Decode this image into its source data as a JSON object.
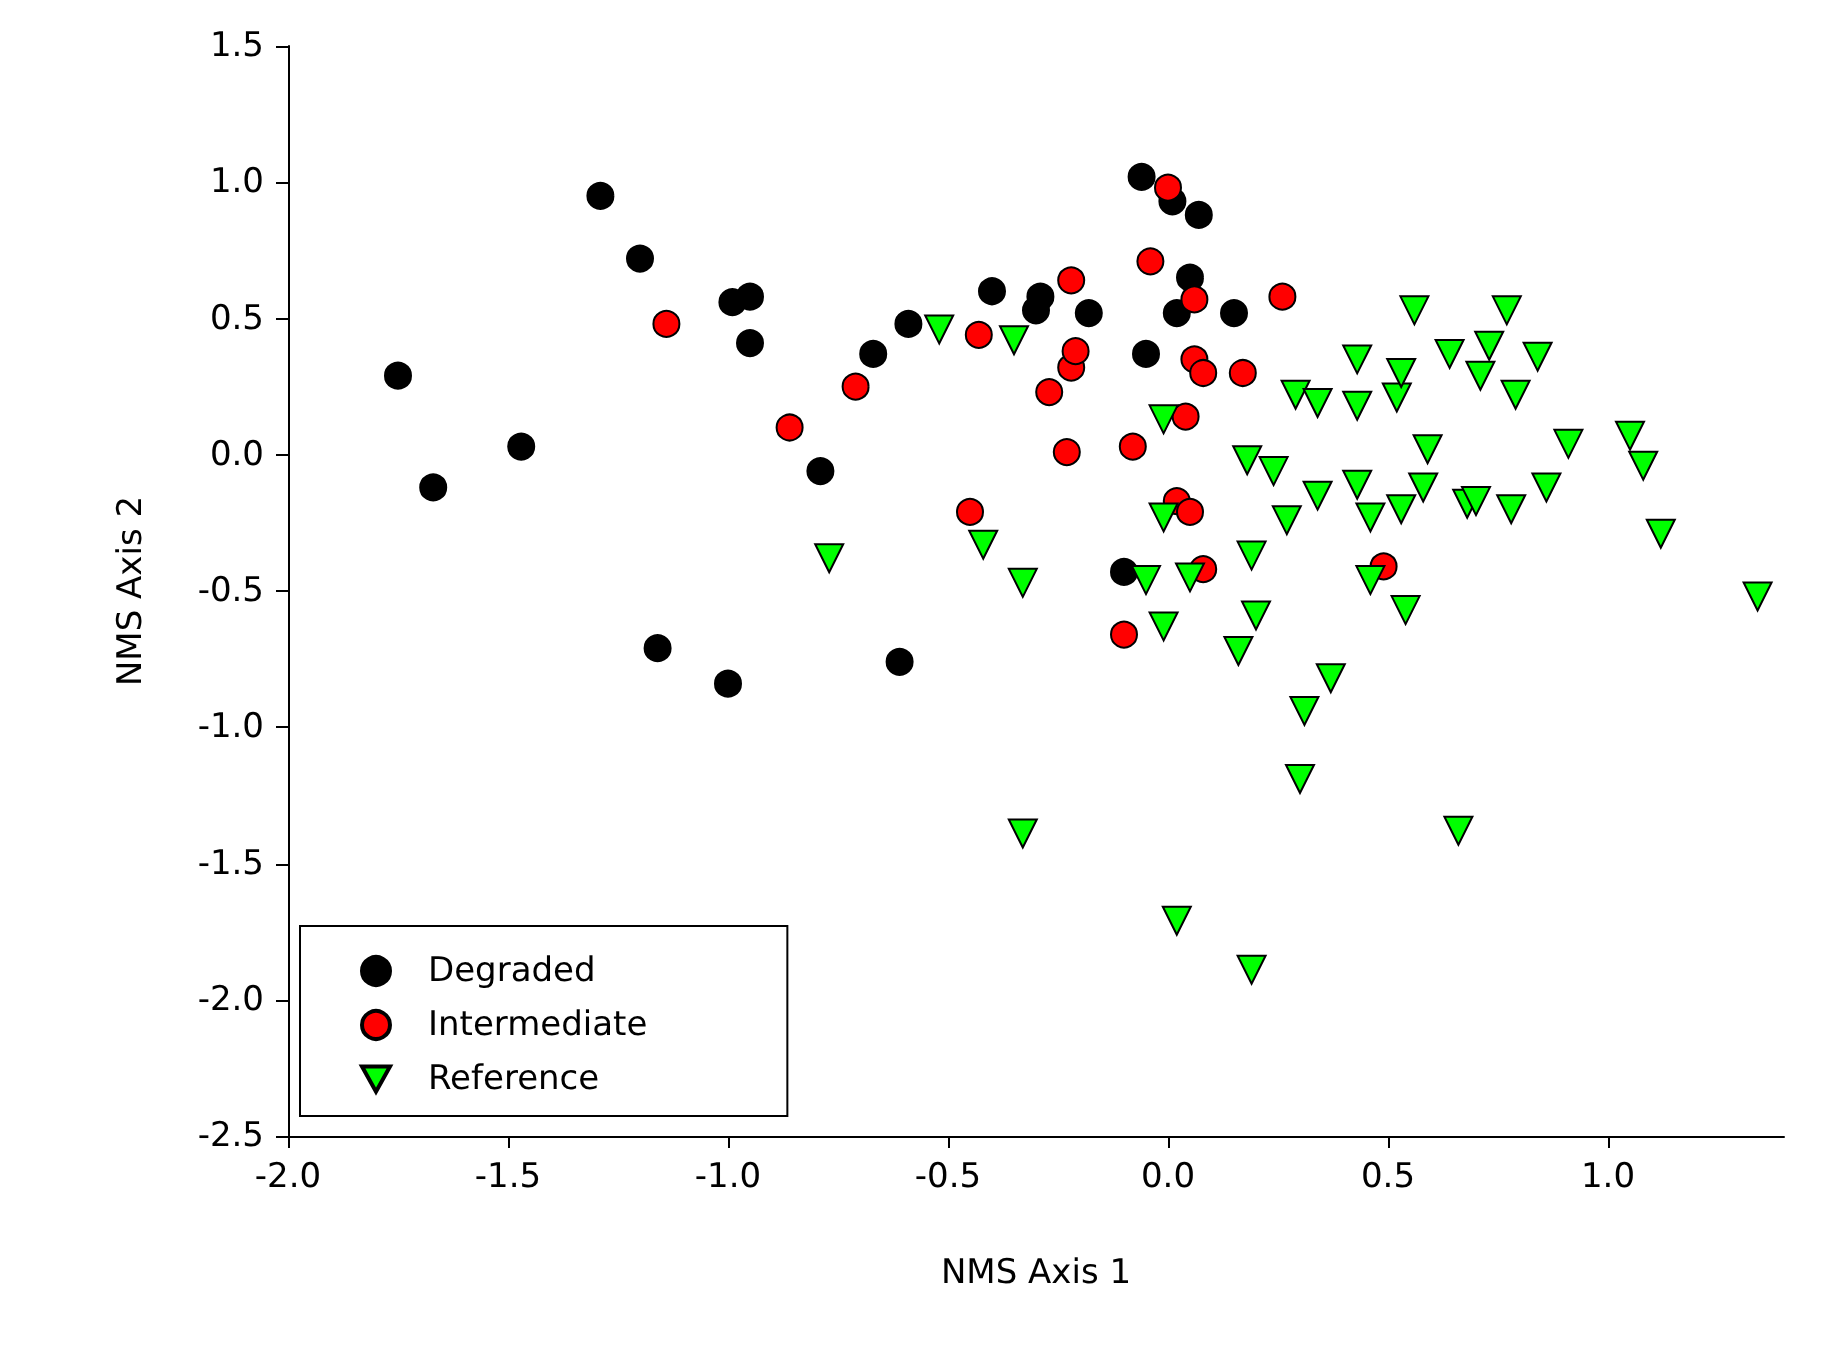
{
  "chart_data": {
    "type": "scatter",
    "xlabel": "NMS Axis 1",
    "ylabel": "NMS Axis 2",
    "xlim": [
      -2,
      1.4
    ],
    "ylim": [
      -2.5,
      1.5
    ],
    "xticks": [
      {
        "value": -2,
        "label": "-2.0"
      },
      {
        "value": -1.5,
        "label": "-1.5"
      },
      {
        "value": -1,
        "label": "-1.0"
      },
      {
        "value": -0.5,
        "label": "-0.5"
      },
      {
        "value": 0,
        "label": "0.0"
      },
      {
        "value": 0.5,
        "label": "0.5"
      },
      {
        "value": 1,
        "label": "1.0"
      }
    ],
    "yticks": [
      {
        "value": -2.5,
        "label": "-2.5"
      },
      {
        "value": -2,
        "label": "-2.0"
      },
      {
        "value": -1.5,
        "label": "-1.5"
      },
      {
        "value": -1,
        "label": "-1.0"
      },
      {
        "value": -0.5,
        "label": "-0.5"
      },
      {
        "value": 0,
        "label": "0.0"
      },
      {
        "value": 0.5,
        "label": "0.5"
      },
      {
        "value": 1,
        "label": "1.0"
      },
      {
        "value": 1.5,
        "label": "1.5"
      }
    ],
    "grid": false,
    "legend": "bottom left",
    "series": [
      {
        "name": "Degraded",
        "color": "#000000",
        "marker": "circle",
        "x": [
          -1.75,
          -1.67,
          -1.47,
          -1.29,
          -1.2,
          -1.16,
          -1.0,
          -0.99,
          -0.95,
          -0.95,
          -0.79,
          -0.67,
          -0.61,
          -0.59,
          -0.4,
          -0.3,
          -0.29,
          -0.18,
          -0.1,
          -0.06,
          -0.05,
          0.01,
          0.02,
          0.05,
          0.07,
          0.15
        ],
        "values": [
          0.29,
          -0.12,
          0.03,
          0.95,
          0.72,
          -0.71,
          -0.84,
          0.56,
          0.58,
          0.41,
          -0.06,
          0.37,
          -0.76,
          0.48,
          0.6,
          0.53,
          0.58,
          0.52,
          -0.43,
          1.02,
          0.37,
          0.93,
          0.52,
          0.65,
          0.88,
          0.52
        ]
      },
      {
        "name": "Intermediate",
        "color": "#ff0000",
        "marker": "circle",
        "x": [
          -1.14,
          -0.86,
          -0.71,
          -0.45,
          -0.43,
          -0.27,
          -0.23,
          -0.22,
          -0.22,
          -0.21,
          -0.1,
          -0.08,
          -0.04,
          0.0,
          0.02,
          0.04,
          0.05,
          0.06,
          0.06,
          0.08,
          0.08,
          0.17,
          0.26,
          0.49
        ],
        "values": [
          0.48,
          0.1,
          0.25,
          -0.21,
          0.44,
          0.23,
          0.01,
          0.64,
          0.32,
          0.38,
          -0.66,
          0.03,
          0.71,
          0.98,
          -0.17,
          0.14,
          -0.21,
          0.57,
          0.35,
          0.3,
          -0.42,
          0.3,
          0.58,
          -0.41
        ]
      },
      {
        "name": "Reference",
        "color": "#00ff00",
        "marker": "triangle",
        "x": [
          -0.77,
          -0.52,
          -0.42,
          -0.35,
          -0.33,
          -0.33,
          -0.05,
          -0.01,
          -0.01,
          -0.01,
          0.02,
          0.05,
          0.16,
          0.18,
          0.19,
          0.19,
          0.2,
          0.24,
          0.27,
          0.29,
          0.3,
          0.31,
          0.34,
          0.34,
          0.37,
          0.43,
          0.43,
          0.43,
          0.46,
          0.46,
          0.52,
          0.53,
          0.53,
          0.54,
          0.56,
          0.58,
          0.59,
          0.64,
          0.66,
          0.68,
          0.7,
          0.71,
          0.73,
          0.77,
          0.78,
          0.79,
          0.84,
          0.86,
          0.91,
          1.05,
          1.08,
          1.12,
          1.34
        ],
        "values": [
          -0.38,
          0.46,
          -0.33,
          0.42,
          -0.47,
          -1.39,
          -0.46,
          0.13,
          -0.23,
          -0.63,
          -1.71,
          -0.45,
          -0.72,
          -0.02,
          -0.37,
          -1.89,
          -0.59,
          -0.06,
          -0.24,
          0.22,
          -1.19,
          -0.94,
          0.19,
          -0.15,
          -0.82,
          0.35,
          0.18,
          -0.11,
          -0.23,
          -0.46,
          0.21,
          0.3,
          -0.2,
          -0.57,
          0.53,
          -0.12,
          0.02,
          0.37,
          -1.38,
          -0.18,
          -0.17,
          0.29,
          0.4,
          0.53,
          -0.2,
          0.22,
          0.36,
          -0.12,
          0.04,
          0.07,
          -0.04,
          -0.29,
          -0.52
        ]
      }
    ]
  }
}
